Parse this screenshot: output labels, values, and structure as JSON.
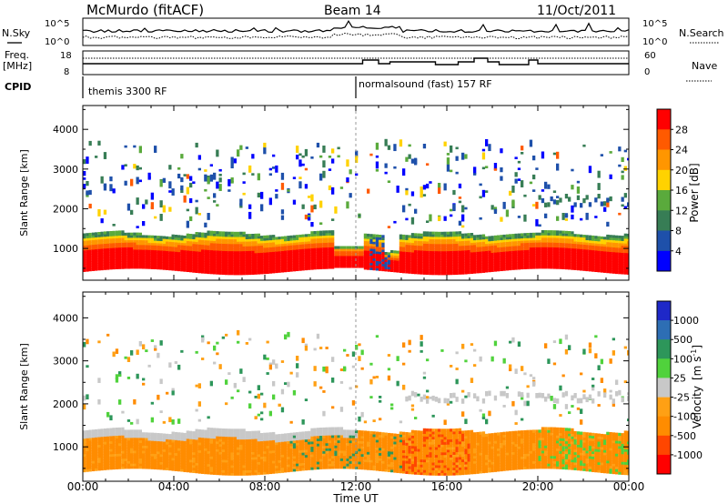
{
  "header": {
    "radar_title": "McMurdo (fitACF)",
    "beam": "Beam 14",
    "date": "11/Oct/2011"
  },
  "noise_panel": {
    "left_label": "N.Sky",
    "left_ticks": [
      "10^5",
      "10^0"
    ],
    "right_label": "N.Search",
    "right_ticks": [
      "10^5",
      "10^0"
    ]
  },
  "freq_panel": {
    "left_label_1": "Freq.",
    "left_label_2": "[MHz]",
    "left_ticks": [
      "18",
      "8"
    ],
    "right_label": "Nave",
    "right_ticks": [
      "60",
      "0"
    ]
  },
  "cpid": {
    "label": "CPID",
    "segments": [
      {
        "start_hour": 0,
        "name": "themis 3300 RF"
      },
      {
        "start_hour": 12,
        "name": "normalsound (fast) 157 RF"
      }
    ]
  },
  "chart_data": [
    {
      "type": "heatmap",
      "quantity": "Power",
      "ylabel": "Slant Range [km]",
      "ylim": [
        200,
        4600
      ],
      "yticks": [
        "4000",
        "3000",
        "2000",
        "1000"
      ],
      "ytick_values": [
        4000,
        3000,
        2000,
        1000
      ],
      "xlim_hours": [
        0,
        24
      ],
      "colorbar": {
        "label": "Power [dB]",
        "levels": [
          "28",
          "24",
          "20",
          "16",
          "12",
          "8",
          "4"
        ],
        "colors": [
          "#ff0000",
          "#ff5a00",
          "#ff9600",
          "#ffd200",
          "#5aaa3c",
          "#377d55",
          "#1e50aa",
          "#0000ff"
        ]
      },
      "dominant_echo_band_km": [
        400,
        1400
      ],
      "sparse_echo_range_km": [
        1500,
        3600
      ]
    },
    {
      "type": "heatmap",
      "quantity": "Velocity",
      "ylabel": "Slant Range [km]",
      "ylim": [
        200,
        4600
      ],
      "yticks": [
        "4000",
        "3000",
        "2000",
        "1000"
      ],
      "ytick_values": [
        4000,
        3000,
        2000,
        1000
      ],
      "xlim_hours": [
        0,
        24
      ],
      "colorbar": {
        "label": "Velocity",
        "unit_base": "[m s",
        "unit_exp": "-1",
        "unit_close": "]",
        "levels": [
          "1000",
          "500",
          "100",
          "25",
          "-25",
          "-100",
          "-500",
          "-1000"
        ],
        "colors": [
          "#1e28c8",
          "#2d6eb4",
          "#2d965a",
          "#50d23c",
          "#c8c8c8",
          "#ffa014",
          "#ff8c00",
          "#ff4600",
          "#ff0000"
        ]
      }
    }
  ],
  "time_axis": {
    "label": "Time UT",
    "ticks": [
      "00:00",
      "04:00",
      "08:00",
      "12:00",
      "16:00",
      "20:00",
      "00:00"
    ]
  }
}
